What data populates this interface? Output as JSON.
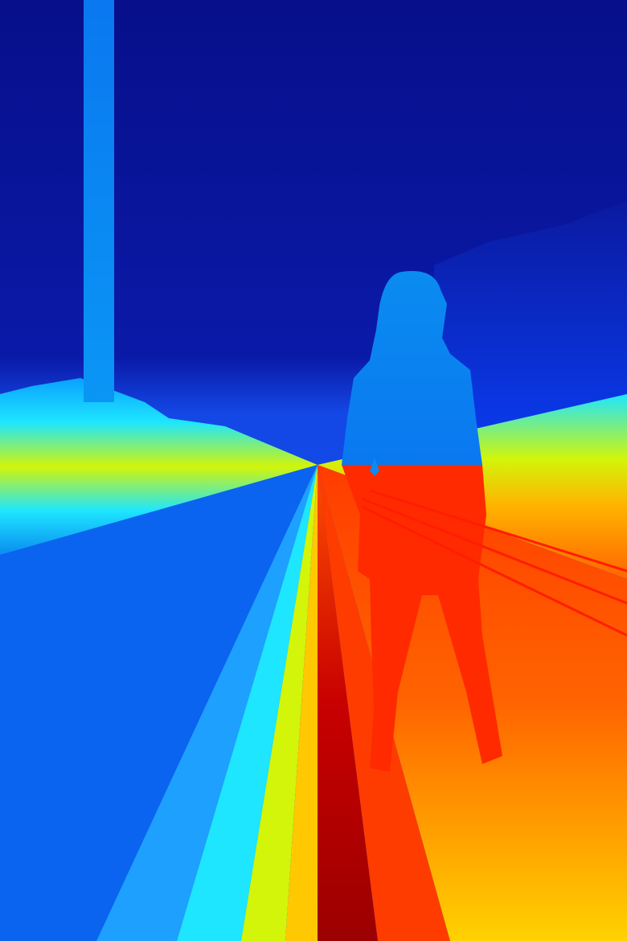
{
  "image": {
    "subject": "person-silhouette",
    "colors": {
      "deep_blue": "#0a0f8c",
      "blue": "#0a3cf0",
      "light_blue": "#0a8cf0",
      "cyan": "#1ee6ff",
      "yellow_green": "#d2f50a",
      "yellow": "#ffd200",
      "orange": "#ff6400",
      "red": "#f01400",
      "dark_red": "#9b0000"
    }
  }
}
